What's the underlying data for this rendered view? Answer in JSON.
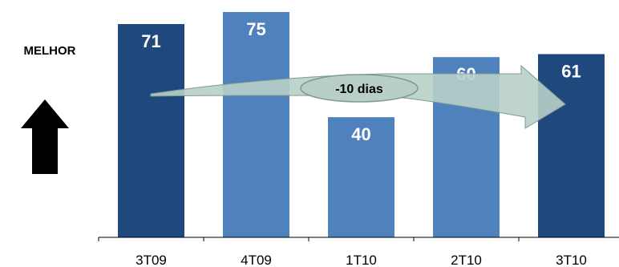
{
  "side_label": "MELHOR",
  "annotation": "-10 dias",
  "icons": {
    "up_arrow": "up-arrow-icon",
    "trend_arrow": "curved-arrow-icon"
  },
  "colors": {
    "dark_bar": "#1f497d",
    "light_bar": "#4f81bd",
    "value_label": "#ffffff",
    "arrow_fill": "#b7cfc8",
    "arrow_stroke": "#7f9a93",
    "axis": "#000000",
    "up_arrow": "#000000"
  },
  "chart_data": {
    "type": "bar",
    "categories": [
      "3T09",
      "4T09",
      "1T10",
      "2T10",
      "3T10"
    ],
    "values": [
      71,
      75,
      40,
      60,
      61
    ],
    "bar_colors": [
      "#1f497d",
      "#4f81bd",
      "#4f81bd",
      "#4f81bd",
      "#1f497d"
    ],
    "title": "",
    "xlabel": "",
    "ylabel": "",
    "ylim": [
      0,
      75
    ],
    "grid": false,
    "data_labels": true
  }
}
